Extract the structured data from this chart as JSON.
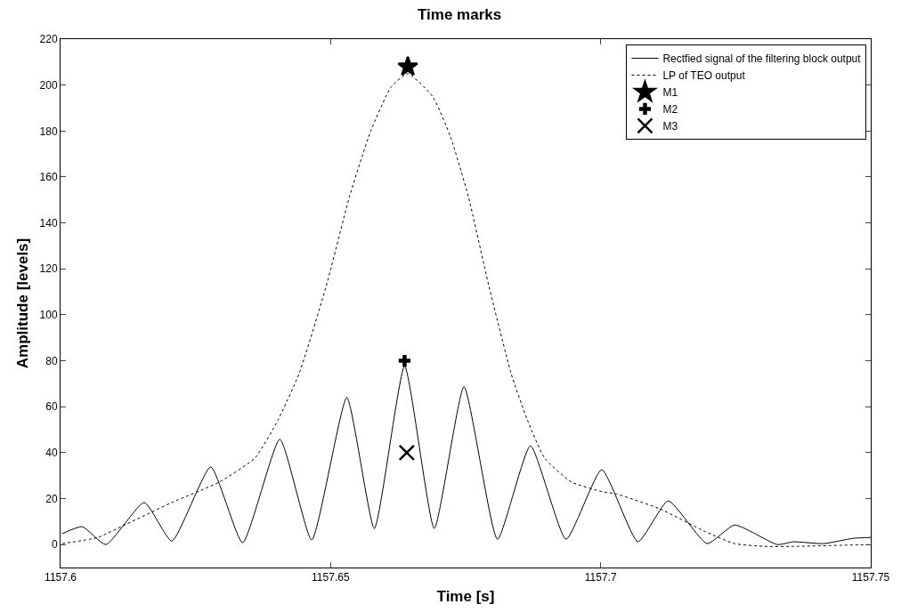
{
  "chart_data": {
    "type": "line",
    "title": "Time marks",
    "xlabel": "Time [s]",
    "ylabel": "Amplitude [levels]",
    "xlim": [
      1157.6,
      1157.75
    ],
    "xticks": [
      1157.6,
      1157.65,
      1157.7,
      1157.75
    ],
    "ylim": [
      -10,
      220
    ],
    "yticks": [
      0,
      20,
      40,
      60,
      80,
      100,
      120,
      140,
      160,
      180,
      200,
      220
    ],
    "grid": false,
    "legend": "top right",
    "series": [
      {
        "name": "Rectfied signal of the filtering block output",
        "line_style": "solid",
        "marker": "none",
        "color": "#000000",
        "x": [
          1157.6003,
          1157.604,
          1157.6084,
          1157.6155,
          1157.6206,
          1157.6278,
          1157.6337,
          1157.6406,
          1157.6465,
          1157.653,
          1157.6581,
          1157.6637,
          1157.6692,
          1157.6747,
          1157.6809,
          1157.687,
          1157.6936,
          1157.7002,
          1157.7069,
          1157.7125,
          1157.7197,
          1157.7248,
          1157.7327,
          1157.7357,
          1157.7413,
          1157.7467,
          1157.75
        ],
        "values": [
          4.7,
          7.8,
          0,
          18.3,
          1.5,
          33.8,
          0.8,
          45.8,
          2,
          64,
          7,
          77.7,
          7,
          68.7,
          2.3,
          43,
          2.3,
          32.6,
          1.2,
          19,
          0.4,
          8.5,
          0,
          1.2,
          0.4,
          2.7,
          3.1
        ]
      },
      {
        "name": "LP of TEO output",
        "line_style": "dotted",
        "marker": "none",
        "color": "#000000",
        "x": [
          1157.6003,
          1157.6069,
          1157.6123,
          1157.6206,
          1157.6294,
          1157.636,
          1157.6403,
          1157.6442,
          1157.6492,
          1157.6535,
          1157.6574,
          1157.6612,
          1157.6643,
          1157.6689,
          1157.6722,
          1157.6755,
          1157.6793,
          1157.6834,
          1157.6864,
          1157.6896,
          1157.6946,
          1157.7005,
          1157.7028,
          1157.711,
          1157.7192,
          1157.7248,
          1157.7303,
          1157.7357,
          1157.75
        ],
        "values": [
          0.4,
          3.1,
          9,
          18.3,
          27.2,
          37.7,
          54.4,
          74.6,
          112.6,
          151.5,
          179.8,
          199.2,
          205,
          195,
          177.5,
          151.5,
          112.6,
          74.6,
          54.4,
          37.7,
          27.2,
          22.9,
          22.1,
          15.5,
          5.8,
          0.4,
          -0.8,
          -0.8,
          0
        ]
      },
      {
        "name": "M1",
        "type": "scatter",
        "marker": "star",
        "color": "#000000",
        "x": [
          1157.6643
        ],
        "values": [
          208
        ]
      },
      {
        "name": "M2",
        "type": "scatter",
        "marker": "cross",
        "color": "#000000",
        "x": [
          1157.6637
        ],
        "values": [
          80
        ]
      },
      {
        "name": "M3",
        "type": "scatter",
        "marker": "x",
        "color": "#000000",
        "x": [
          1157.6641
        ],
        "values": [
          40
        ]
      }
    ]
  }
}
